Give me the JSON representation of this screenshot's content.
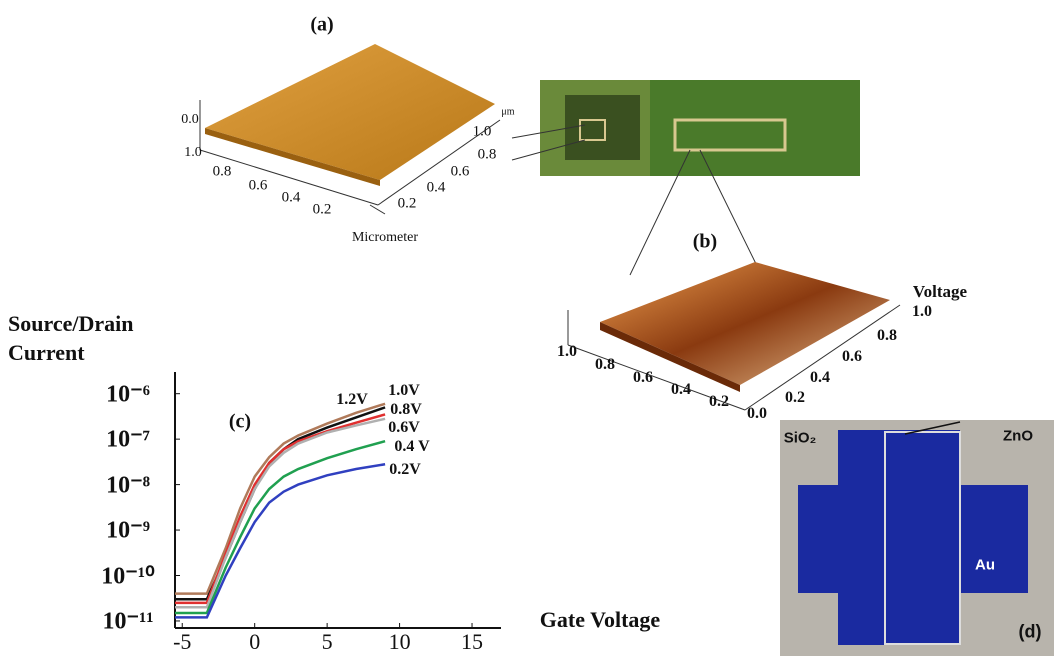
{
  "panel_a": {
    "label": "(a)",
    "z_ticks": [
      "0.0",
      "1.0"
    ],
    "x_ticks": [
      "0.8",
      "0.6",
      "0.4",
      "0.2"
    ],
    "x_label": "Micrometer",
    "y_unit": "μm",
    "y_ticks": [
      "1.0",
      "0.8",
      "0.6",
      "0.4",
      "0.2"
    ]
  },
  "panel_b": {
    "label": "(b)",
    "y_label": "Voltage",
    "y_ticks": [
      "1.0",
      "0.8",
      "0.6",
      "0.4",
      "0.2"
    ],
    "x_ticks": [
      "1.0",
      "0.8",
      "0.6",
      "0.4",
      "0.2",
      "0.0"
    ]
  },
  "chart_data": {
    "type": "line",
    "label": "(c)",
    "y_label": "Source/Drain Current",
    "x_label": "Gate Voltage",
    "y_log": true,
    "x": [
      -5.5,
      -3.3,
      -2,
      -1,
      0,
      1,
      2,
      3,
      5,
      7,
      9
    ],
    "series": [
      {
        "name": "1.2V",
        "color": "#b07a5a",
        "values": [
          4e-11,
          4e-11,
          4e-10,
          3e-09,
          1.5e-08,
          4e-08,
          8e-08,
          1.2e-07,
          2.2e-07,
          3.8e-07,
          6e-07
        ]
      },
      {
        "name": "1.0V",
        "color": "#111111",
        "values": [
          3e-11,
          3e-11,
          2.5e-10,
          1.5e-09,
          8e-09,
          3e-08,
          6e-08,
          1e-07,
          1.8e-07,
          3e-07,
          5e-07
        ]
      },
      {
        "name": "0.8V",
        "color": "#e03030",
        "values": [
          2.5e-11,
          2.5e-11,
          3e-10,
          2e-09,
          1e-08,
          3e-08,
          6e-08,
          9e-08,
          1.5e-07,
          2.3e-07,
          3.5e-07
        ]
      },
      {
        "name": "0.6V",
        "color": "#b0b0b0",
        "values": [
          2e-11,
          2e-11,
          2.5e-10,
          1.5e-09,
          8e-09,
          2.5e-08,
          5e-08,
          8e-08,
          1.4e-07,
          2e-07,
          2.8e-07
        ]
      },
      {
        "name": "0.4 V",
        "color": "#20a050",
        "values": [
          1.5e-11,
          1.5e-11,
          1.5e-10,
          7e-10,
          3e-09,
          8e-09,
          1.5e-08,
          2.2e-08,
          3.8e-08,
          6e-08,
          9e-08
        ]
      },
      {
        "name": "0.2V",
        "color": "#3040c0",
        "values": [
          1.2e-11,
          1.2e-11,
          1e-10,
          4e-10,
          1.5e-09,
          4e-09,
          7e-09,
          1e-08,
          1.6e-08,
          2.2e-08,
          2.8e-08
        ]
      }
    ],
    "xlim": [
      -5.5,
      17
    ],
    "xticks": [
      -5,
      0,
      5,
      10,
      15
    ],
    "ylim": [
      7e-12,
      3e-06
    ],
    "yticks": [
      {
        "value": 1e-06,
        "label": "10⁻⁶"
      },
      {
        "value": 1e-07,
        "label": "10⁻⁷"
      },
      {
        "value": 1e-08,
        "label": "10⁻⁸"
      },
      {
        "value": 1e-09,
        "label": "10⁻⁹"
      },
      {
        "value": 1e-10,
        "label": "10⁻¹⁰"
      },
      {
        "value": 1e-11,
        "label": "10⁻¹¹"
      }
    ]
  },
  "panel_d": {
    "label": "(d)",
    "labels": [
      "SiO₂",
      "ZnO",
      "Au"
    ]
  }
}
